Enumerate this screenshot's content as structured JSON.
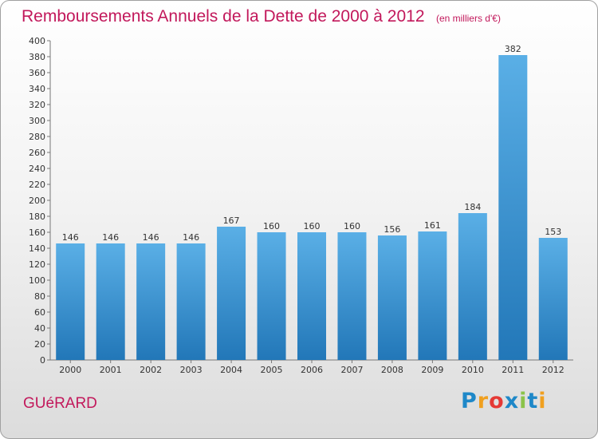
{
  "chart_data": {
    "type": "bar",
    "title": "Remboursements Annuels de la Dette de 2000 à 2012",
    "unit": "(en milliers d'€)",
    "categories": [
      "2000",
      "2001",
      "2002",
      "2003",
      "2004",
      "2005",
      "2006",
      "2007",
      "2008",
      "2009",
      "2010",
      "2011",
      "2012"
    ],
    "values": [
      146,
      146,
      146,
      146,
      167,
      160,
      160,
      160,
      156,
      161,
      184,
      382,
      153
    ],
    "ylim": [
      0,
      400
    ],
    "ytick_step": 20,
    "grid": false,
    "xlabel": "",
    "ylabel": "",
    "colors": {
      "bar_top": "#5aafe6",
      "bar_bottom": "#2277b8",
      "title": "#c2185b"
    }
  },
  "footer": {
    "commune": "GUéRARD"
  },
  "logo": {
    "text": "Proxiti",
    "letters": [
      "P",
      "r",
      "o",
      "x",
      "i",
      "t",
      "i"
    ]
  }
}
